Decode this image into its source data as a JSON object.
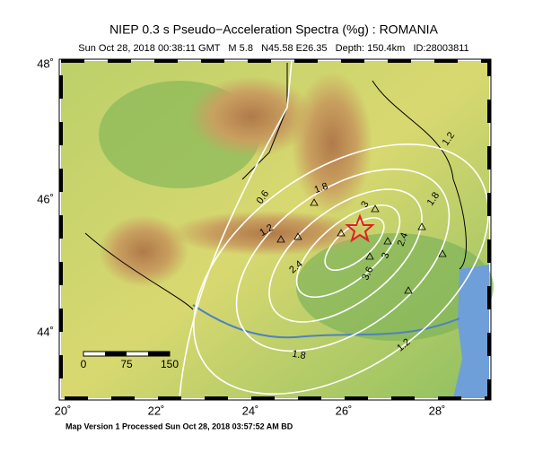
{
  "header": {
    "title": "NIEP 0.3 s Pseudo−Acceleration Spectra (%g) : ROMANIA",
    "subtitle": "Sun Oct 28, 2018 00:38:11 GMT   M 5.8   N45.58 E26.35   Depth: 150.4km   ID:28003811"
  },
  "map": {
    "lon_labels": [
      "20˚",
      "22˚",
      "24˚",
      "26˚",
      "28˚"
    ],
    "lat_labels": [
      "48˚",
      "46˚",
      "44˚"
    ],
    "contour_labels": [
      "1.2",
      "0.6",
      "1.8",
      "3",
      "1.8",
      "1.2",
      "2.4",
      "3.6",
      "3",
      "2.4",
      "1.8",
      "1.2"
    ],
    "scale_bar": [
      "0",
      "75",
      "150"
    ]
  },
  "footer": "Map Version 1 Processed Sun Oct 28, 2018 03:57:52 AM BD"
}
